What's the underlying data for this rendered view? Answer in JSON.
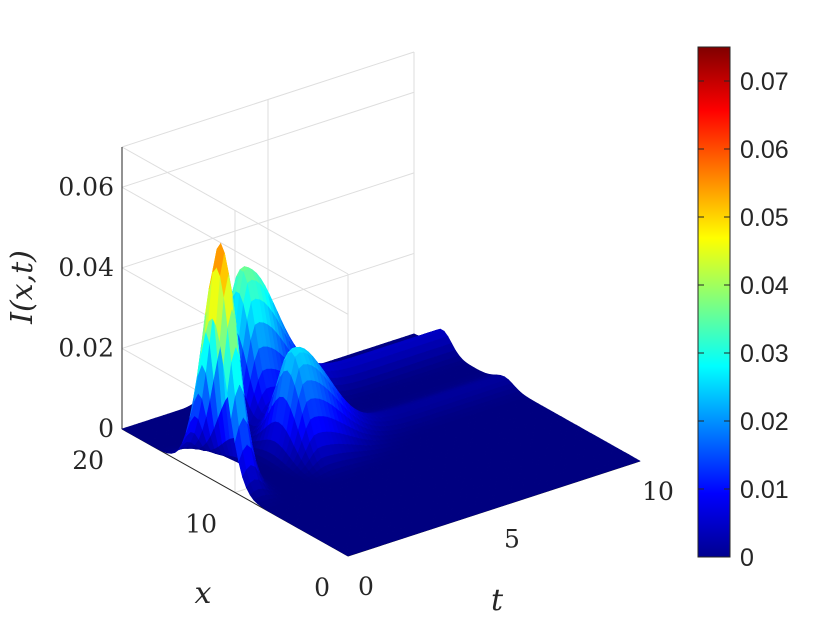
{
  "chart_data": {
    "type": "surface",
    "zlabel": "I(x,t)",
    "xlabel": "t",
    "ylabel": "x",
    "t_range": [
      0,
      10
    ],
    "x_range": [
      0,
      20
    ],
    "z_range": [
      0,
      0.07
    ],
    "t_ticks": [
      {
        "value": 0,
        "label": "0"
      },
      {
        "value": 5,
        "label": "5"
      },
      {
        "value": 10,
        "label": "10"
      }
    ],
    "x_ticks": [
      {
        "value": 0,
        "label": "0"
      },
      {
        "value": 10,
        "label": "10"
      },
      {
        "value": 20,
        "label": "20"
      }
    ],
    "z_ticks": [
      {
        "value": 0,
        "label": "0"
      },
      {
        "value": 0.02,
        "label": "0.02"
      },
      {
        "value": 0.04,
        "label": "0.04"
      },
      {
        "value": 0.06,
        "label": "0.06"
      }
    ],
    "colorbar": {
      "colormap": "jet",
      "range": [
        0,
        0.075
      ],
      "ticks": [
        {
          "value": 0,
          "label": "0"
        },
        {
          "value": 0.01,
          "label": "0.01"
        },
        {
          "value": 0.02,
          "label": "0.02"
        },
        {
          "value": 0.03,
          "label": "0.03"
        },
        {
          "value": 0.04,
          "label": "0.04"
        },
        {
          "value": 0.05,
          "label": "0.05"
        },
        {
          "value": 0.06,
          "label": "0.06"
        },
        {
          "value": 0.07,
          "label": "0.07"
        }
      ]
    },
    "surface_features": [
      {
        "feature": "peak",
        "t": 0.3,
        "x": 12,
        "I": 0.058
      },
      {
        "feature": "peak",
        "t": 2.8,
        "x": 12,
        "I": 0.026
      },
      {
        "feature": "peak",
        "t": 3.2,
        "x": 17.5,
        "I": 0.0365
      },
      {
        "feature": "plateau",
        "t_from": 5,
        "t_to": 10,
        "x": 17.5,
        "I": 0.005
      },
      {
        "feature": "plateau",
        "t_from": 4,
        "t_to": 10,
        "x": 12,
        "I": 0.002
      }
    ],
    "grid": true
  }
}
